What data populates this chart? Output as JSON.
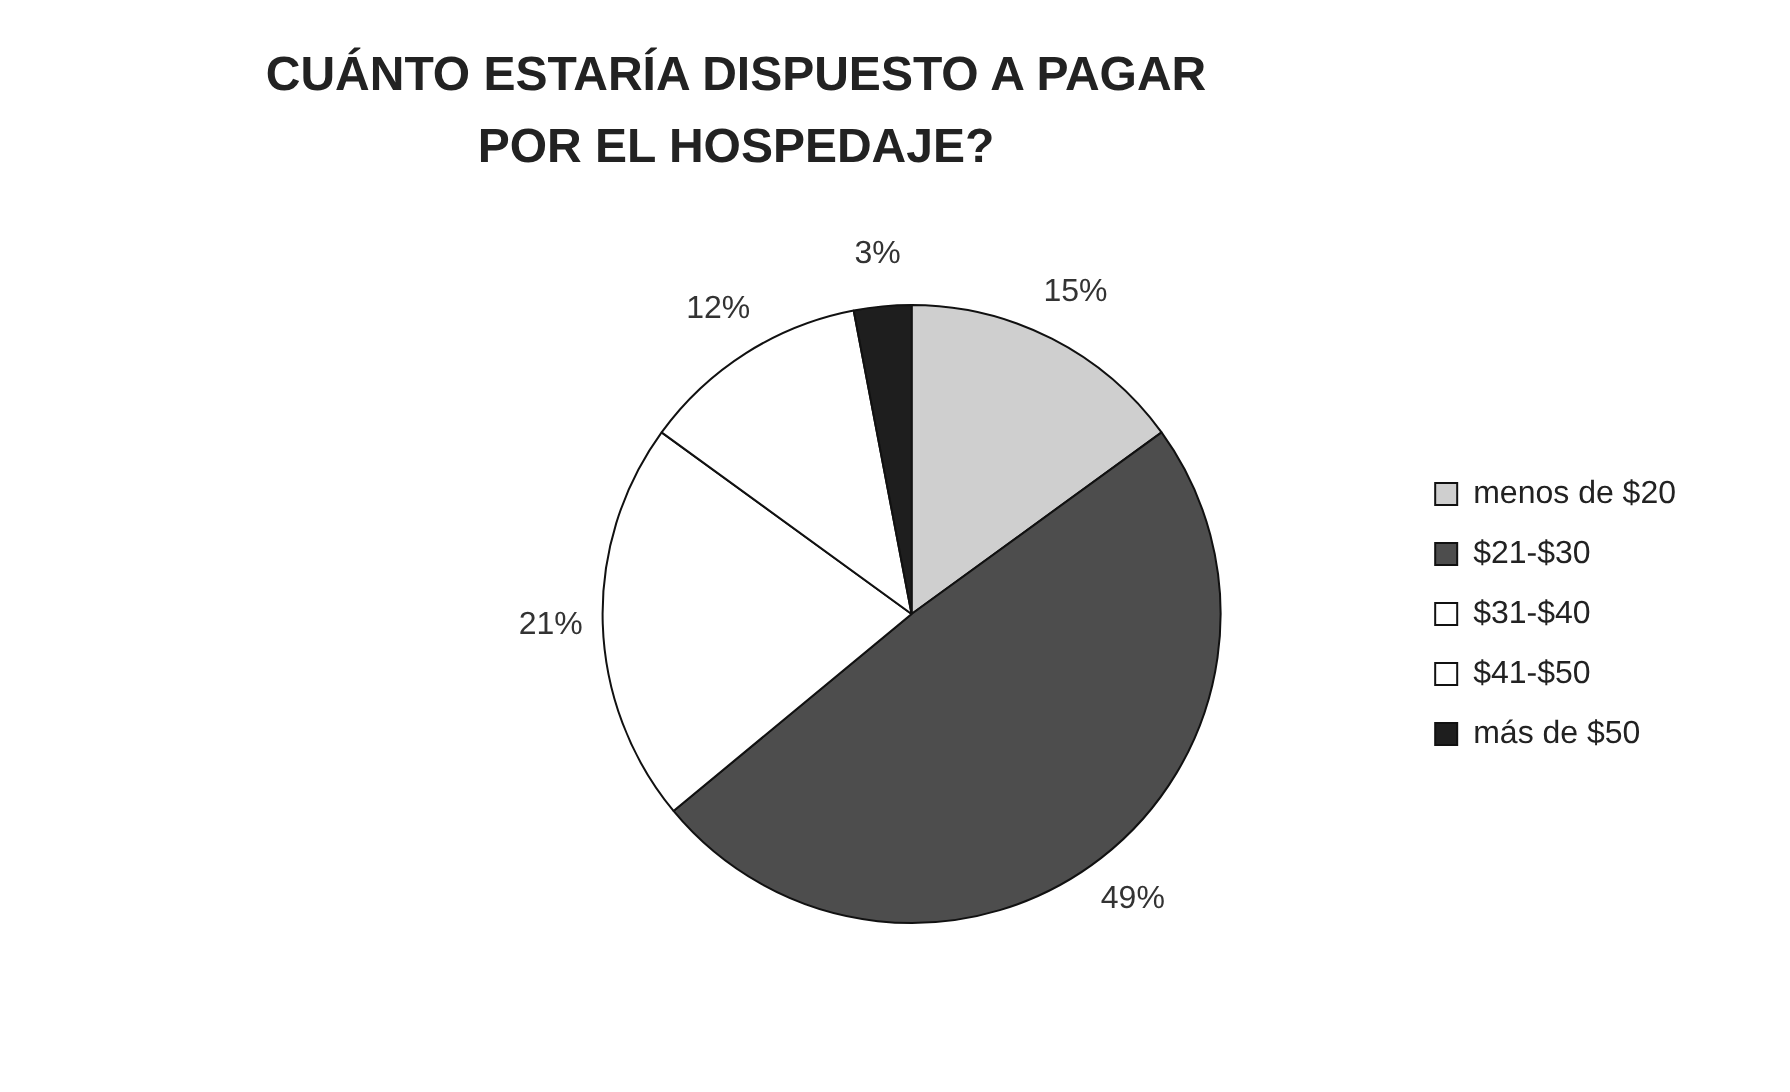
{
  "chart_data": {
    "type": "pie",
    "title": "CUÁNTO ESTARÍA DISPUESTO A PAGAR POR EL HOSPEDAJE?",
    "categories": [
      "menos de $20",
      "$21-$30",
      "$31-$40",
      "$41-$50",
      "más de $50"
    ],
    "values": [
      15,
      49,
      21,
      12,
      3
    ],
    "value_labels": [
      "15%",
      "49%",
      "21%",
      "12%",
      "3%"
    ],
    "colors": [
      "#cfcfcf",
      "#4d4d4d",
      "#ffffff",
      "#ffffff",
      "#1e1e1e"
    ],
    "legend": "right"
  }
}
